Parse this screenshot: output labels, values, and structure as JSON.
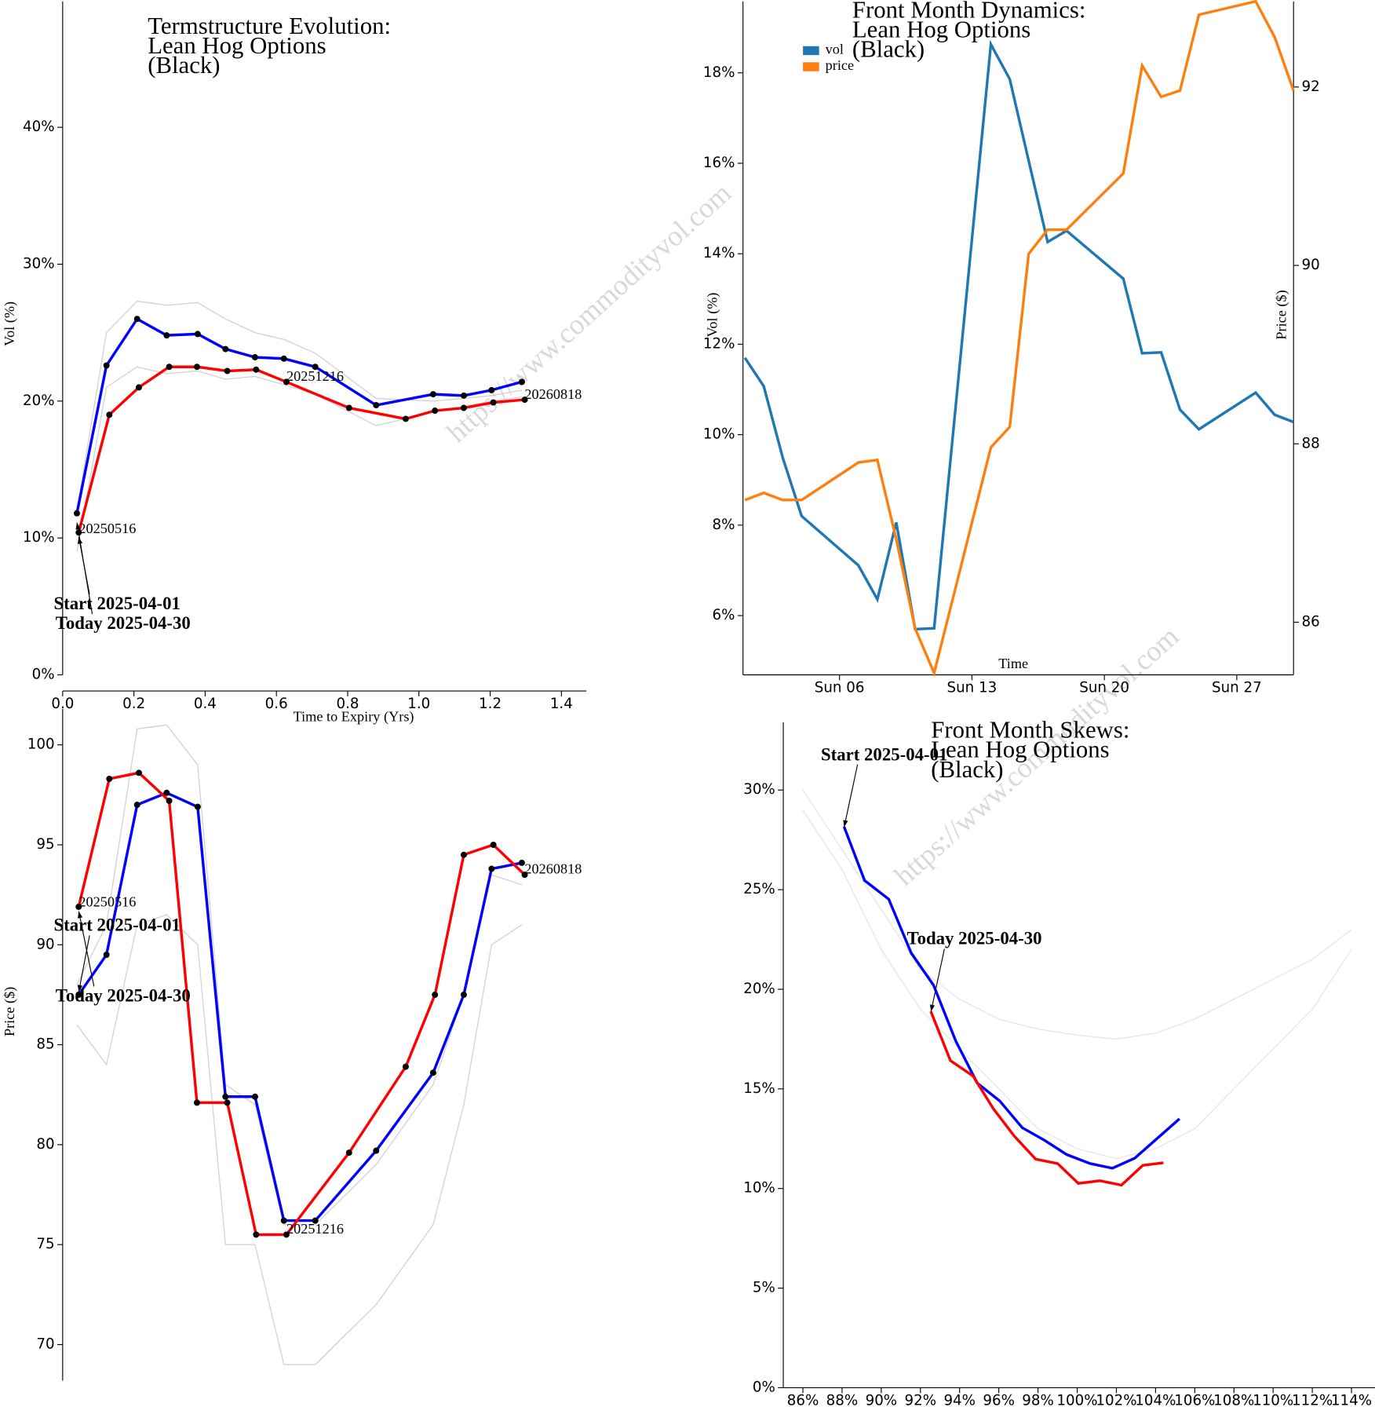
{
  "watermark": "https://www.commodityvol.com",
  "chart_data": [
    {
      "type": "line",
      "title": [
        "Termstructure Evolution:",
        "Lean Hog Options",
        "(Black)"
      ],
      "y_label": "Vol (%)",
      "x_label": "Time to Expiry (Yrs)",
      "xlim": [
        0,
        1.47
      ],
      "xticks": [
        {
          "value": 0,
          "label": "0.0"
        },
        0.2,
        0.4,
        0.6,
        0.8,
        {
          "value": 1,
          "label": "1.0"
        },
        1.2,
        1.4
      ],
      "ylim": [
        0,
        49.2
      ],
      "yticks": [
        {
          "value": 0,
          "label": "0%"
        },
        {
          "value": 10,
          "label": "10%"
        },
        {
          "value": 20,
          "label": "20%"
        },
        {
          "value": 30,
          "label": "30%"
        },
        {
          "value": 40,
          "label": "40%"
        }
      ],
      "annotations": [
        "20250516",
        "20251216",
        "20260818",
        "Start 2025-04-01",
        "Today 2025-04-30"
      ],
      "series": [
        {
          "color": "#d3d3d3",
          "x": [
            0.04,
            0.123,
            0.209,
            0.292,
            0.379,
            0.457,
            0.54,
            0.621,
            0.709,
            0.88,
            1.04,
            1.126,
            1.204,
            1.289
          ],
          "values": [
            12,
            25,
            27.3,
            27,
            27.2,
            26,
            25,
            24.5,
            23.5,
            20.2,
            20,
            20.2,
            20.4,
            20.8
          ]
        },
        {
          "color": "#d3d3d3",
          "x": [
            0.04,
            0.123,
            0.209,
            0.292,
            0.379,
            0.457,
            0.54,
            0.621,
            0.709,
            0.88,
            1.04,
            1.126,
            1.204,
            1.289
          ],
          "values": [
            9,
            21,
            22.5,
            22,
            22.2,
            21.6,
            21.8,
            21.2,
            20.5,
            18.2,
            19.2,
            19.6,
            20,
            20.3
          ]
        },
        {
          "color": "#0000ff",
          "markers": true,
          "x": [
            0.04,
            0.123,
            0.209,
            0.292,
            0.379,
            0.457,
            0.54,
            0.621,
            0.709,
            0.88,
            1.04,
            1.126,
            1.204,
            1.289
          ],
          "values": [
            11.8,
            22.6,
            26.0,
            24.8,
            24.9,
            23.8,
            23.2,
            23.1,
            22.5,
            19.7,
            20.5,
            20.4,
            20.8,
            21.4
          ]
        },
        {
          "color": "#ff0000",
          "markers": true,
          "x": [
            0.045,
            0.131,
            0.214,
            0.299,
            0.377,
            0.462,
            0.543,
            0.628,
            0.804,
            0.963,
            1.045,
            1.126,
            1.209,
            1.297
          ],
          "values": [
            10.4,
            19.0,
            21.0,
            22.5,
            22.5,
            22.2,
            22.3,
            21.4,
            19.5,
            18.7,
            19.3,
            19.5,
            19.9,
            20.1
          ]
        }
      ]
    },
    {
      "type": "line",
      "y_label": "Price ($)",
      "xlim": [
        0,
        1.47
      ],
      "ylim": [
        68.2,
        101.8
      ],
      "yticks": [
        70,
        75,
        80,
        85,
        90,
        95,
        100
      ],
      "annotations": [
        "20250516",
        "20251216",
        "20260818",
        "Start 2025-04-01",
        "Today 2025-04-30"
      ],
      "series": [
        {
          "color": "#d3d3d3",
          "x": [
            0.04,
            0.123,
            0.209,
            0.292,
            0.379,
            0.457,
            0.54,
            0.621,
            0.709,
            0.88,
            1.04,
            1.126,
            1.204,
            1.289
          ],
          "values": [
            88,
            91,
            100.8,
            101,
            99,
            83,
            82,
            76,
            76,
            79,
            83,
            87.5,
            93.5,
            93
          ]
        },
        {
          "color": "#d3d3d3",
          "x": [
            0.04,
            0.123,
            0.209,
            0.292,
            0.379,
            0.457,
            0.54,
            0.621,
            0.709,
            0.88,
            1.04,
            1.126,
            1.204,
            1.289
          ],
          "values": [
            86,
            84,
            91,
            91.5,
            90,
            75,
            75,
            69,
            69,
            72,
            76,
            82,
            90,
            91
          ]
        },
        {
          "color": "#0000ff",
          "markers": true,
          "x": [
            0.045,
            0.123,
            0.209,
            0.292,
            0.379,
            0.457,
            0.54,
            0.621,
            0.709,
            0.88,
            1.04,
            1.126,
            1.204,
            1.289
          ],
          "values": [
            87.5,
            89.5,
            97.0,
            97.6,
            96.9,
            82.4,
            82.4,
            76.2,
            76.2,
            79.7,
            83.6,
            87.5,
            93.8,
            94.1
          ]
        },
        {
          "color": "#ff0000",
          "markers": true,
          "x": [
            0.045,
            0.131,
            0.214,
            0.299,
            0.377,
            0.462,
            0.543,
            0.628,
            0.804,
            0.963,
            1.045,
            1.126,
            1.209,
            1.297
          ],
          "values": [
            91.9,
            98.3,
            98.6,
            97.2,
            82.1,
            82.1,
            75.5,
            75.5,
            79.6,
            83.9,
            87.5,
            94.5,
            95.0,
            93.5
          ]
        }
      ]
    },
    {
      "type": "line",
      "title": [
        "Front Month Dynamics:",
        "Lean Hog Options",
        "(Black)"
      ],
      "y_label": "Vol (%)",
      "y2_label": "Price ($)",
      "x_label": "Time",
      "x": [
        1,
        2,
        3,
        4,
        7,
        8,
        9,
        10,
        11,
        14,
        15,
        16,
        17,
        18,
        21,
        22,
        23,
        24,
        25,
        28,
        29,
        30
      ],
      "xlim": [
        0.9,
        30
      ],
      "xticks": [
        {
          "value": 6,
          "label": "Sun 06"
        },
        {
          "value": 13,
          "label": "Sun 13"
        },
        {
          "value": 20,
          "label": "Sun 20"
        },
        {
          "value": 27,
          "label": "Sun 27"
        }
      ],
      "ylim": [
        4.69,
        19.58
      ],
      "yticks": [
        {
          "value": 6,
          "label": "6%"
        },
        {
          "value": 8,
          "label": "8%"
        },
        {
          "value": 10,
          "label": "10%"
        },
        {
          "value": 12,
          "label": "12%"
        },
        {
          "value": 14,
          "label": "14%"
        },
        {
          "value": 16,
          "label": "16%"
        },
        {
          "value": 18,
          "label": "18%"
        }
      ],
      "y2lim": [
        85.41,
        92.96
      ],
      "y2ticks": [
        86,
        88,
        90,
        92
      ],
      "series": [
        {
          "name": "vol",
          "color": "#1f77b4",
          "values": [
            11.7,
            11.07,
            9.49,
            8.2,
            7.11,
            6.36,
            8.06,
            5.7,
            5.72,
            18.63,
            17.86,
            16.06,
            14.26,
            14.51,
            13.45,
            11.8,
            11.82,
            10.55,
            10.12,
            10.93,
            10.44,
            10.28
          ]
        },
        {
          "name": "price",
          "color": "#ff7f0e",
          "axis": "y2",
          "values": [
            87.37,
            87.45,
            87.37,
            87.37,
            87.79,
            87.82,
            86.93,
            85.93,
            85.43,
            87.96,
            88.19,
            90.13,
            90.4,
            90.4,
            91.03,
            92.24,
            91.89,
            91.96,
            92.81,
            92.96,
            92.56,
            91.96
          ]
        }
      ]
    },
    {
      "type": "line",
      "title": [
        "Front Month Skews:",
        "Lean Hog Options",
        "(Black)"
      ],
      "xlim": [
        85,
        115.2
      ],
      "xticks": [
        {
          "value": 86,
          "label": "86%"
        },
        {
          "value": 88,
          "label": "88%"
        },
        {
          "value": 90,
          "label": "90%"
        },
        {
          "value": 92,
          "label": "92%"
        },
        {
          "value": 94,
          "label": "94%"
        },
        {
          "value": 96,
          "label": "96%"
        },
        {
          "value": 98,
          "label": "98%"
        },
        {
          "value": 100,
          "label": "100%"
        },
        {
          "value": 102,
          "label": "102%"
        },
        {
          "value": 104,
          "label": "104%"
        },
        {
          "value": 106,
          "label": "106%"
        },
        {
          "value": 108,
          "label": "108%"
        },
        {
          "value": 110,
          "label": "110%"
        },
        {
          "value": 112,
          "label": "112%"
        },
        {
          "value": 114,
          "label": "114%"
        }
      ],
      "ylim": [
        0,
        33.4
      ],
      "yticks": [
        {
          "value": 0,
          "label": "0%"
        },
        {
          "value": 5,
          "label": "5%"
        },
        {
          "value": 10,
          "label": "10%"
        },
        {
          "value": 15,
          "label": "15%"
        },
        {
          "value": 20,
          "label": "20%"
        },
        {
          "value": 25,
          "label": "25%"
        },
        {
          "value": 30,
          "label": "30%"
        }
      ],
      "annotations": [
        "Start 2025-04-01",
        "Today 2025-04-30"
      ],
      "series": [
        {
          "color": "#e6e6e6",
          "x": [
            86,
            88,
            90,
            92,
            94,
            96,
            98,
            100,
            102,
            104,
            106,
            108,
            110,
            112,
            114
          ],
          "values": [
            30,
            27,
            24,
            21,
            19.5,
            18.5,
            18,
            17.7,
            17.5,
            17.8,
            18.5,
            19.5,
            20.5,
            21.5,
            23
          ]
        },
        {
          "color": "#e6e6e6",
          "x": [
            86,
            88,
            90,
            92,
            94,
            96,
            98,
            100,
            102,
            104,
            106,
            108,
            110,
            112,
            114
          ],
          "values": [
            29,
            26,
            22,
            19,
            17,
            15,
            13,
            12,
            11.5,
            12,
            13,
            15,
            17,
            19,
            22
          ]
        },
        {
          "color": "#0000ff",
          "x": [
            88.1,
            89.15,
            90.38,
            91.53,
            92.67,
            93.8,
            94.9,
            96.05,
            97.2,
            98.33,
            99.47,
            100.66,
            101.8,
            102.94,
            105.22
          ],
          "values": [
            28.16,
            25.46,
            24.52,
            21.82,
            20.2,
            17.41,
            15.29,
            14.39,
            13.05,
            12.42,
            11.7,
            11.25,
            11.02,
            11.52,
            13.5
          ]
        },
        {
          "color": "#ff0000",
          "x": [
            92.53,
            93.53,
            94.68,
            95.73,
            96.78,
            97.88,
            99.0,
            100.06,
            101.16,
            102.26,
            103.35,
            104.4
          ],
          "values": [
            18.89,
            16.42,
            15.65,
            13.99,
            12.64,
            11.47,
            11.25,
            10.26,
            10.39,
            10.17,
            11.16,
            11.29
          ]
        }
      ]
    }
  ]
}
